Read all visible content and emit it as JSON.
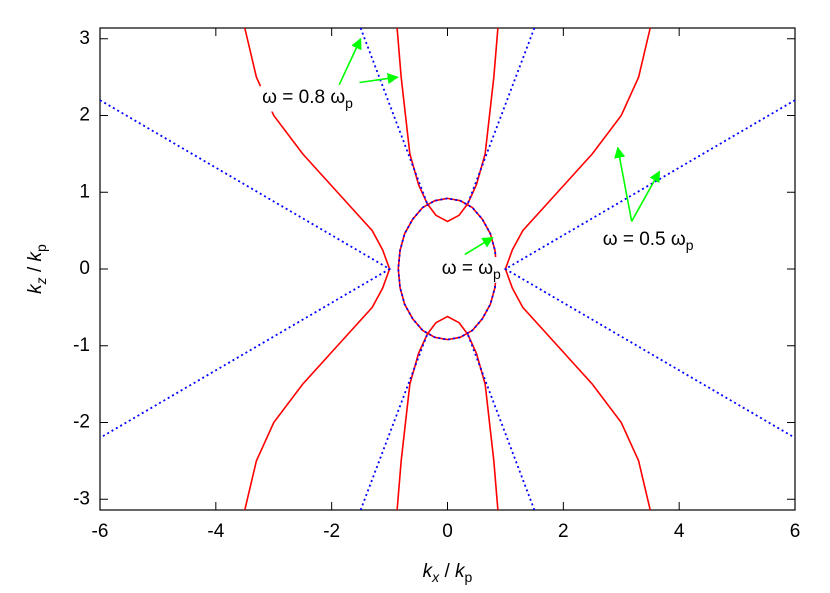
{
  "chart_data": {
    "type": "line",
    "xlabel": [
      {
        "text": "k",
        "italic": true
      },
      {
        "text": "x",
        "sub": true,
        "italic": true
      },
      {
        "text": " / "
      },
      {
        "text": "k",
        "italic": true
      },
      {
        "text": "p",
        "sub": true
      }
    ],
    "ylabel": [
      {
        "text": "k",
        "italic": true
      },
      {
        "text": "z",
        "sub": true,
        "italic": true
      },
      {
        "text": " / "
      },
      {
        "text": "k",
        "italic": true
      },
      {
        "text": "p",
        "sub": true
      }
    ],
    "xlim": [
      -6,
      6
    ],
    "ylim": [
      -3.14,
      3.14
    ],
    "xticks": [
      -6,
      -4,
      -2,
      0,
      2,
      4,
      6
    ],
    "yticks": [
      -3,
      -2,
      -1,
      0,
      1,
      2,
      3
    ],
    "series": [
      {
        "color": "#ff0000",
        "style": "solid",
        "x": [
          3.5,
          3.3,
          3.0,
          2.5,
          1.9,
          1.3,
          1.12,
          1.0,
          1.12,
          1.3,
          1.9,
          2.5,
          3.0,
          3.3,
          3.5
        ],
        "values": [
          -3.14,
          -2.5,
          -2,
          -1.5,
          -1,
          -0.5,
          -0.25,
          0,
          0.25,
          0.5,
          1,
          1.5,
          2,
          2.5,
          3.14
        ]
      },
      {
        "color": "#ff0000",
        "style": "solid",
        "x": [
          -3.5,
          -3.3,
          -3.0,
          -2.5,
          -1.9,
          -1.3,
          -1.12,
          -1.0,
          -1.12,
          -1.3,
          -1.9,
          -2.5,
          -3.0,
          -3.3,
          -3.5
        ],
        "values": [
          -3.14,
          -2.5,
          -2,
          -1.5,
          -1,
          -0.5,
          -0.25,
          0,
          0.25,
          0.5,
          1,
          1.5,
          2,
          2.5,
          3.14
        ]
      },
      {
        "color": "#ff0000",
        "style": "solid",
        "x": [
          -0.87,
          -0.8,
          -0.65,
          -0.5,
          -0.35,
          -0.2,
          0,
          0.2,
          0.35,
          0.5,
          0.65,
          0.8,
          0.87
        ],
        "values": [
          3.14,
          2.5,
          1.5,
          1.1,
          0.85,
          0.7,
          0.62,
          0.7,
          0.85,
          1.1,
          1.5,
          2.5,
          3.14
        ]
      },
      {
        "color": "#ff0000",
        "style": "solid",
        "x": [
          -0.87,
          -0.8,
          -0.65,
          -0.5,
          -0.35,
          -0.2,
          0,
          0.2,
          0.35,
          0.5,
          0.65,
          0.8,
          0.87
        ],
        "values": [
          -3.14,
          -2.5,
          -1.5,
          -1.1,
          -0.85,
          -0.7,
          -0.62,
          -0.7,
          -0.85,
          -1.1,
          -1.5,
          -2.5,
          -3.14
        ]
      },
      {
        "color": "#ff0000",
        "style": "solid",
        "x": [
          0.85,
          0.82,
          0.74,
          0.6,
          0.43,
          0.22,
          0,
          -0.22,
          -0.43,
          -0.6,
          -0.74,
          -0.82,
          -0.85,
          -0.82,
          -0.74,
          -0.6,
          -0.43,
          -0.22,
          0,
          0.22,
          0.43,
          0.6,
          0.74,
          0.82,
          0.85
        ],
        "values": [
          0,
          0.24,
          0.46,
          0.65,
          0.8,
          0.89,
          0.92,
          0.89,
          0.8,
          0.65,
          0.46,
          0.24,
          0,
          -0.24,
          -0.46,
          -0.65,
          -0.8,
          -0.89,
          -0.92,
          -0.89,
          -0.8,
          -0.65,
          -0.46,
          -0.24,
          0
        ]
      },
      {
        "color": "#0000ff",
        "style": "dotted",
        "x": [
          0.85,
          0.82,
          0.74,
          0.6,
          0.43,
          0.22,
          0,
          -0.22,
          -0.43,
          -0.6,
          -0.74,
          -0.82,
          -0.85,
          -0.82,
          -0.74,
          -0.6,
          -0.43,
          -0.22,
          0,
          0.22,
          0.43,
          0.6,
          0.74,
          0.82,
          0.85
        ],
        "values": [
          0,
          0.24,
          0.46,
          0.65,
          0.8,
          0.89,
          0.92,
          0.89,
          0.8,
          0.65,
          0.46,
          0.24,
          0,
          -0.24,
          -0.46,
          -0.65,
          -0.8,
          -0.89,
          -0.92,
          -0.89,
          -0.8,
          -0.65,
          -0.46,
          -0.24,
          0
        ]
      },
      {
        "color": "#0000ff",
        "style": "dotted",
        "x": [
          -6,
          -1,
          -6
        ],
        "values": [
          2.2,
          0,
          -2.2
        ]
      },
      {
        "color": "#0000ff",
        "style": "dotted",
        "x": [
          6,
          1,
          6
        ],
        "values": [
          2.2,
          0,
          -2.2
        ]
      },
      {
        "color": "#0000ff",
        "style": "dotted",
        "x": [
          -1.5,
          -0.35
        ],
        "values": [
          3.14,
          0.85
        ]
      },
      {
        "color": "#0000ff",
        "style": "dotted",
        "x": [
          1.5,
          0.35
        ],
        "values": [
          3.14,
          0.85
        ]
      },
      {
        "color": "#0000ff",
        "style": "dotted",
        "x": [
          -1.5,
          -0.35
        ],
        "values": [
          -3.14,
          -0.85
        ]
      },
      {
        "color": "#0000ff",
        "style": "dotted",
        "x": [
          1.5,
          0.35
        ],
        "values": [
          -3.14,
          -0.85
        ]
      }
    ],
    "annotations": [
      {
        "text": [
          {
            "text": "ω = 0.8 ω"
          },
          {
            "text": "p",
            "sub": true
          }
        ],
        "xytext": [
          -3.2,
          2.23
        ],
        "arrows": [
          [
            -1.87,
            2.4,
            -1.5,
            3.0
          ],
          [
            -1.52,
            2.43,
            -0.86,
            2.5
          ]
        ]
      },
      {
        "text": [
          {
            "text": "ω = ω"
          },
          {
            "text": "p",
            "sub": true
          }
        ],
        "xytext": [
          -0.1,
          0.0
        ],
        "arrows": [
          [
            0.3,
            0.19,
            0.78,
            0.41
          ]
        ]
      },
      {
        "text": [
          {
            "text": "ω = 0.5 ω"
          },
          {
            "text": "p",
            "sub": true
          }
        ],
        "xytext": [
          2.68,
          0.38
        ],
        "arrows": [
          [
            3.18,
            0.62,
            2.94,
            1.58
          ],
          [
            3.18,
            0.62,
            3.66,
            1.27
          ]
        ]
      }
    ],
    "arrow_color": "#00ff00"
  }
}
